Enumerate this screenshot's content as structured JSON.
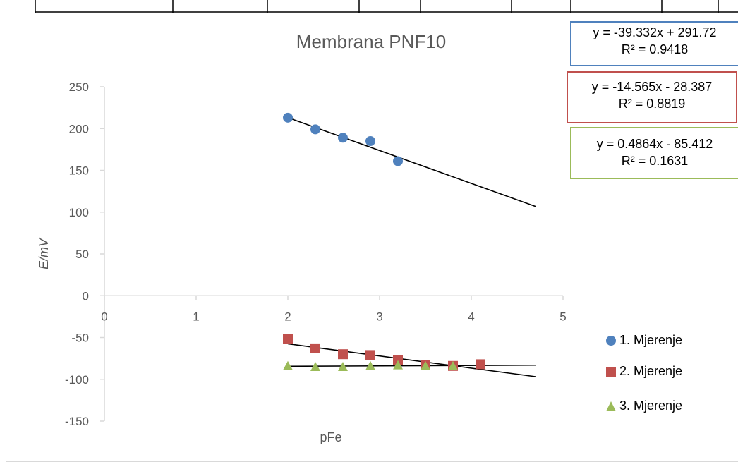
{
  "chart_data": {
    "type": "scatter",
    "title": "Membrana PNF10",
    "xlabel": "pFe",
    "ylabel": "E/mV",
    "xlim": [
      0,
      5
    ],
    "ylim": [
      -150,
      250
    ],
    "x_ticks": [
      0,
      1,
      2,
      3,
      4,
      5
    ],
    "y_ticks": [
      250,
      200,
      150,
      100,
      50,
      0,
      -50,
      -100,
      -150
    ],
    "grid": false,
    "legend_position": "right",
    "series": [
      {
        "name": "1. Mjerenje",
        "marker": "circle",
        "color": "#4f81bd",
        "x": [
          2.0,
          2.3,
          2.6,
          2.9,
          3.2
        ],
        "y": [
          213,
          199,
          189,
          185,
          161
        ],
        "trendline": {
          "slope": -39.332,
          "intercept": 291.72,
          "x_range": [
            2.0,
            4.7
          ],
          "equation": "y = -39.332x + 291.72",
          "r2": "R² = 0.9418"
        }
      },
      {
        "name": "2. Mjerenje",
        "marker": "square",
        "color": "#c0504d",
        "x": [
          2.0,
          2.3,
          2.6,
          2.9,
          3.2,
          3.5,
          3.8,
          4.1
        ],
        "y": [
          -52,
          -63,
          -70,
          -71,
          -77,
          -83,
          -84,
          -82
        ],
        "trendline": {
          "slope": -14.565,
          "intercept": -28.387,
          "x_range": [
            2.0,
            4.7
          ],
          "equation": "y = -14.565x - 28.387",
          "r2": "R² = 0.8819"
        }
      },
      {
        "name": "3. Mjerenje",
        "marker": "triangle",
        "color": "#9bbb59",
        "x": [
          2.0,
          2.3,
          2.6,
          2.9,
          3.2,
          3.5,
          3.8
        ],
        "y": [
          -84,
          -85,
          -85,
          -84,
          -83,
          -84,
          -84
        ],
        "trendline": {
          "slope": 0.4864,
          "intercept": -85.412,
          "x_range": [
            2.0,
            4.7
          ],
          "equation": "y = 0.4864x - 85.412",
          "r2": "R² = 0.1631"
        }
      }
    ]
  },
  "colors": {
    "axis": "#d9d9d9",
    "text": "#595959",
    "trendline": "#000000"
  }
}
